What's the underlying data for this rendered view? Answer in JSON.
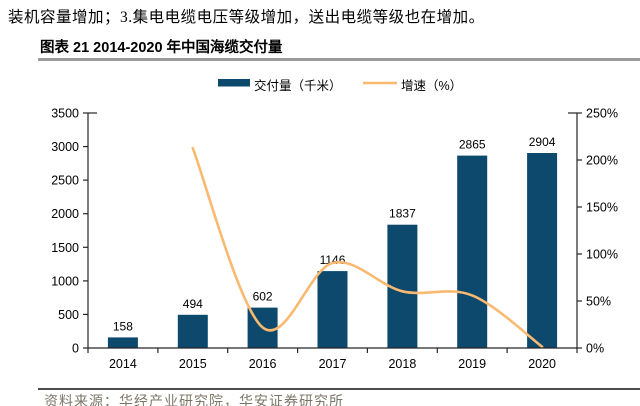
{
  "page": {
    "top_text": "装机容量增加；3.集电电缆电压等级增加，送出电缆等级也在增加。",
    "chart_title": "图表 21 2014-2020 年中国海缆交付量",
    "source_text": "资料来源：华经产业研究院，华安证券研究所"
  },
  "legend": {
    "bar_label": "交付量（千米）",
    "line_label": "增速（%）"
  },
  "colors": {
    "bar": "#0d496d",
    "line": "#f9b970",
    "axis": "#262626",
    "title_rule": "#9a9a9a",
    "bottom_rule": "#4d4d4d",
    "source_text": "#7d7768"
  },
  "chart_data": {
    "type": "bar",
    "subtype": "bar-line-combo",
    "title": "图表 21 2014-2020 年中国海缆交付量",
    "categories": [
      "2014",
      "2015",
      "2016",
      "2017",
      "2018",
      "2019",
      "2020"
    ],
    "series": [
      {
        "name": "交付量（千米）",
        "type": "bar",
        "axis": "left",
        "values": [
          158,
          494,
          602,
          1146,
          1837,
          2865,
          2904
        ]
      },
      {
        "name": "增速（%）",
        "type": "line",
        "axis": "right",
        "values": [
          null,
          212.7,
          21.9,
          90.4,
          60.3,
          56.0,
          1.4
        ]
      }
    ],
    "bar_value_labels": [
      "158",
      "494",
      "602",
      "1146",
      "1837",
      "2865",
      "2904"
    ],
    "left_axis": {
      "min": 0,
      "max": 3500,
      "step": 500,
      "tick_labels": [
        "0",
        "500",
        "1000",
        "1500",
        "2000",
        "2500",
        "3000",
        "3500"
      ]
    },
    "right_axis": {
      "min": 0,
      "max": 250,
      "step": 50,
      "tick_labels": [
        "0%",
        "50%",
        "100%",
        "150%",
        "200%",
        "250%"
      ]
    },
    "grid": false,
    "legend_position": "top-center"
  }
}
